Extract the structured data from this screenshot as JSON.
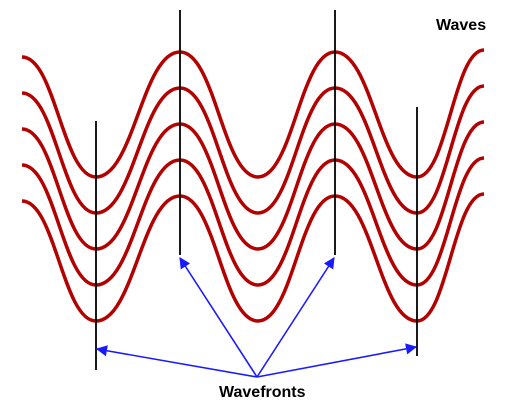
{
  "labels": {
    "waves": "Waves",
    "wavefronts": "Wavefronts"
  },
  "waves": {
    "count": 5,
    "color": "#b30000"
  },
  "wavefronts": {
    "count": 4,
    "line_color": "#000000"
  },
  "arrows": {
    "color": "#1a1aff"
  }
}
